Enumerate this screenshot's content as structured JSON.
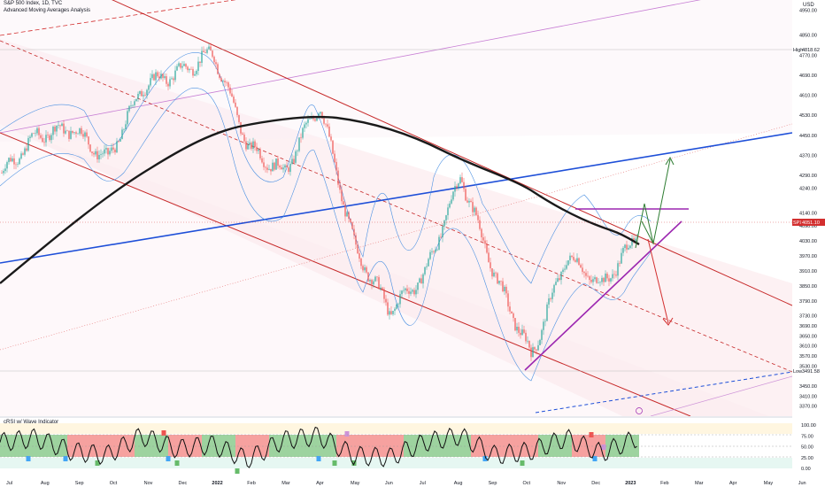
{
  "header": {
    "title": "S&P 500 Index, 1D, TVC",
    "subtitle": "Advanced Moving Averages Analysis",
    "currency": "USD"
  },
  "main_pane": {
    "y_ticks": [
      "4950.00",
      "4850.00",
      "4770.00",
      "4690.00",
      "4610.00",
      "4530.00",
      "4450.00",
      "4370.00",
      "4290.00",
      "4240.00",
      "4140.00",
      "4090.00",
      "4030.00",
      "3970.00",
      "3910.00",
      "3850.00",
      "3790.00",
      "3730.00",
      "3690.00",
      "3650.00",
      "3610.00",
      "3570.00",
      "3530.00",
      "3450.00",
      "3410.00",
      "3370.00"
    ],
    "high_label": {
      "tag": "High",
      "value": "4818.62"
    },
    "low_label": {
      "tag": "Low",
      "value": "3491.58"
    },
    "price_label": {
      "tag": "SPX",
      "value": "4051.10"
    }
  },
  "oscillator": {
    "title": "cRSI w/ Wave Indicator",
    "y_ticks": [
      "100.00",
      "75.00",
      "50.00",
      "25.00",
      "0.00"
    ]
  },
  "x_axis": {
    "labels": [
      {
        "text": "Jul",
        "bold": false
      },
      {
        "text": "Aug",
        "bold": false
      },
      {
        "text": "Sep",
        "bold": false
      },
      {
        "text": "Oct",
        "bold": false
      },
      {
        "text": "Nov",
        "bold": false
      },
      {
        "text": "Dec",
        "bold": false
      },
      {
        "text": "2022",
        "bold": true
      },
      {
        "text": "Feb",
        "bold": false
      },
      {
        "text": "Mar",
        "bold": false
      },
      {
        "text": "Apr",
        "bold": false
      },
      {
        "text": "May",
        "bold": false
      },
      {
        "text": "Jun",
        "bold": false
      },
      {
        "text": "Jul",
        "bold": false
      },
      {
        "text": "Aug",
        "bold": false
      },
      {
        "text": "Sep",
        "bold": false
      },
      {
        "text": "Oct",
        "bold": false
      },
      {
        "text": "Nov",
        "bold": false
      },
      {
        "text": "Dec",
        "bold": false
      },
      {
        "text": "2023",
        "bold": true
      },
      {
        "text": "Feb",
        "bold": false
      },
      {
        "text": "Mar",
        "bold": false
      },
      {
        "text": "Apr",
        "bold": false
      },
      {
        "text": "May",
        "bold": false
      },
      {
        "text": "Jun",
        "bold": false
      }
    ]
  },
  "colors": {
    "channel_red": "#c62828",
    "trend_blue": "#1e4fd8",
    "ma_black": "#1a1a1a",
    "triangle_purple": "#9c27b0",
    "arrow_green": "#2e7d32",
    "bull_candle": "#26a69a",
    "bear_candle": "#ef5350",
    "band_blue": "#4a90e2"
  },
  "chart_data": {
    "type": "candlestick",
    "title": "S&P 500 Index, 1D, TVC",
    "ylim": [
      3330,
      4990
    ],
    "series": [
      {
        "name": "S&P 500 Index",
        "points": [
          {
            "x": "2021-07",
            "y": 4300
          },
          {
            "x": "2021-08",
            "y": 4450
          },
          {
            "x": "2021-09",
            "y": 4480
          },
          {
            "x": "2021-10",
            "y": 4350
          },
          {
            "x": "2021-11",
            "y": 4650
          },
          {
            "x": "2021-12",
            "y": 4700
          },
          {
            "x": "2022-01",
            "y": 4780
          },
          {
            "x": "2022-02",
            "y": 4400
          },
          {
            "x": "2022-03",
            "y": 4300
          },
          {
            "x": "2022-04",
            "y": 4580
          },
          {
            "x": "2022-05",
            "y": 4000
          },
          {
            "x": "2022-06",
            "y": 3750
          },
          {
            "x": "2022-07",
            "y": 3900
          },
          {
            "x": "2022-08",
            "y": 4290
          },
          {
            "x": "2022-09",
            "y": 3880
          },
          {
            "x": "2022-10",
            "y": 3570
          },
          {
            "x": "2022-11",
            "y": 3970
          },
          {
            "x": "2022-12",
            "y": 3850
          },
          {
            "x": "2023-01",
            "y": 4050
          }
        ]
      },
      {
        "name": "cRSI",
        "panel": "oscillator",
        "ylim": [
          0,
          100
        ],
        "points": [
          {
            "x": "2021-07",
            "y": 60
          },
          {
            "x": "2021-08",
            "y": 70
          },
          {
            "x": "2021-09",
            "y": 40
          },
          {
            "x": "2021-10",
            "y": 30
          },
          {
            "x": "2021-11",
            "y": 75
          },
          {
            "x": "2021-12",
            "y": 45
          },
          {
            "x": "2022-01",
            "y": 55
          },
          {
            "x": "2022-02",
            "y": 20
          },
          {
            "x": "2022-03",
            "y": 65
          },
          {
            "x": "2022-04",
            "y": 75
          },
          {
            "x": "2022-05",
            "y": 30
          },
          {
            "x": "2022-06",
            "y": 25
          },
          {
            "x": "2022-07",
            "y": 60
          },
          {
            "x": "2022-08",
            "y": 75
          },
          {
            "x": "2022-09",
            "y": 30
          },
          {
            "x": "2022-10",
            "y": 40
          },
          {
            "x": "2022-11",
            "y": 70
          },
          {
            "x": "2022-12",
            "y": 35
          },
          {
            "x": "2023-01",
            "y": 70
          }
        ]
      }
    ],
    "grid": false
  }
}
